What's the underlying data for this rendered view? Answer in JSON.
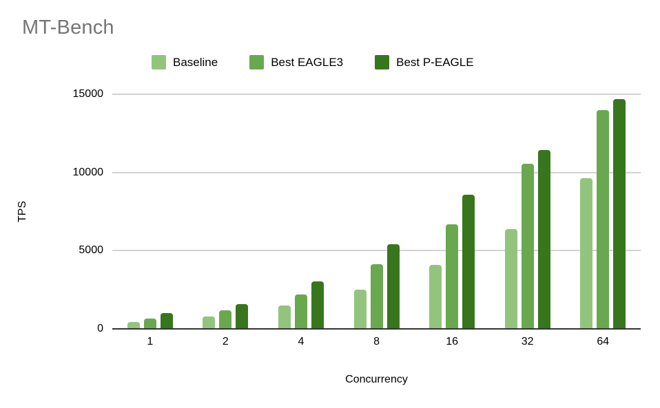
{
  "chart_data": {
    "type": "bar",
    "title": "MT-Bench",
    "xlabel": "Concurrency",
    "ylabel": "TPS",
    "categories": [
      "1",
      "2",
      "4",
      "8",
      "16",
      "32",
      "64"
    ],
    "series": [
      {
        "name": "Baseline",
        "color": "#93c47d",
        "values": [
          450,
          800,
          1500,
          2500,
          4100,
          6400,
          9650
        ]
      },
      {
        "name": "Best EAGLE3",
        "color": "#6aa84f",
        "values": [
          650,
          1200,
          2200,
          4150,
          6700,
          10550,
          14000
        ]
      },
      {
        "name": "Best P-EAGLE",
        "color": "#38761d",
        "values": [
          1000,
          1580,
          3050,
          5400,
          8600,
          11450,
          14700
        ]
      }
    ],
    "y_ticks": [
      0,
      5000,
      10000,
      15000
    ],
    "ylim": [
      0,
      15000
    ],
    "grid": true,
    "legend_position": "top",
    "colors": {
      "title_text": "#757575",
      "axis_text": "#000000",
      "gridline": "#d2d2d2",
      "axis_line": "#333333",
      "background": "#ffffff"
    }
  }
}
